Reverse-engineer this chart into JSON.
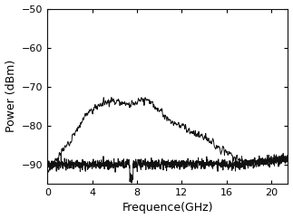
{
  "title": "",
  "xlabel": "Frequence(GHz)",
  "ylabel": "Power (dBm)",
  "xlim": [
    0,
    21.5
  ],
  "ylim": [
    -95,
    -50
  ],
  "xticks": [
    0,
    4,
    8,
    12,
    16,
    20
  ],
  "yticks": [
    -90,
    -80,
    -70,
    -60,
    -50
  ],
  "line1_color": "#111111",
  "line2_color": "#111111",
  "line_width": 0.7,
  "background_color": "#ffffff",
  "xlabel_fontsize": 9,
  "ylabel_fontsize": 9,
  "tick_fontsize": 8,
  "signal_envelope_x": [
    0,
    0.5,
    2.0,
    3.5,
    5.0,
    6.0,
    7.0,
    8.0,
    9.0,
    10.0,
    11.0,
    12.0,
    13.0,
    14.5,
    16.0,
    18.0,
    19.5,
    21.5
  ],
  "signal_envelope_y": [
    -92,
    -90,
    -84,
    -77,
    -74,
    -73.5,
    -74.5,
    -74,
    -73.5,
    -76,
    -79,
    -80,
    -82,
    -84,
    -87,
    -90,
    -89.5,
    -89
  ],
  "noise_mean": -90.0,
  "noise_std_floor": 0.6,
  "noise_std_signal": 0.9,
  "num_points": 1500
}
